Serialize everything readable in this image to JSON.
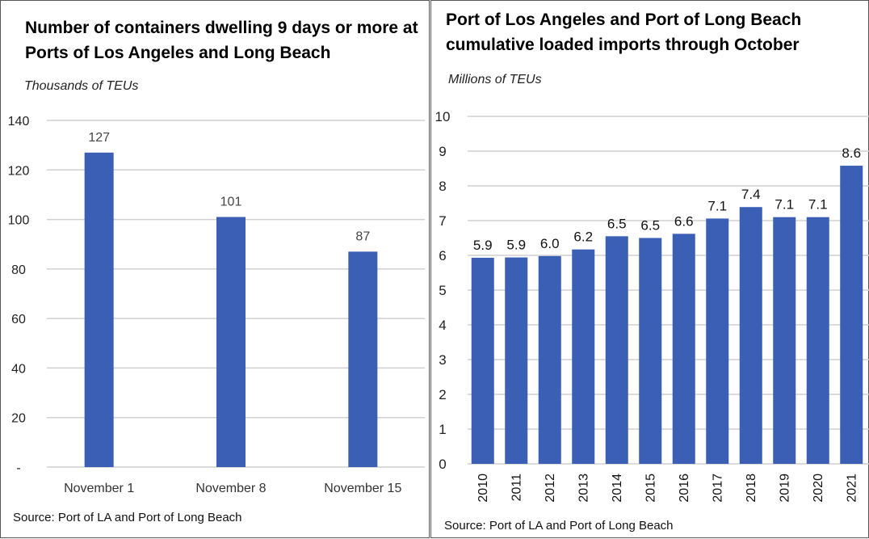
{
  "chart_data": [
    {
      "type": "bar",
      "title": "Number of containers dwelling 9 days or more at Ports of Los Angeles and Long Beach",
      "ylabel": "Thousands of TEUs",
      "xlabel": "",
      "categories": [
        "November 1",
        "November 8",
        "November 15"
      ],
      "values": [
        127,
        101,
        87
      ],
      "data_labels": [
        "127",
        "101",
        "87"
      ],
      "ylim": [
        0,
        140
      ],
      "yticks": [
        0,
        20,
        40,
        60,
        80,
        100,
        120,
        140
      ],
      "ytick_labels": [
        "-",
        "20",
        "40",
        "60",
        "80",
        "100",
        "120",
        "140"
      ],
      "grid": true,
      "color": "#3a5fb5",
      "source": "Source: Port of LA and Port of Long Beach"
    },
    {
      "type": "bar",
      "title": "Port of Los Angeles and Port of Long Beach cumulative loaded imports through October",
      "ylabel": "Millions of TEUs",
      "xlabel": "",
      "categories": [
        "2010",
        "2011",
        "2012",
        "2013",
        "2014",
        "2015",
        "2016",
        "2017",
        "2018",
        "2019",
        "2020",
        "2021"
      ],
      "values": [
        5.93,
        5.94,
        5.98,
        6.17,
        6.55,
        6.5,
        6.62,
        7.06,
        7.39,
        7.1,
        7.1,
        8.58
      ],
      "data_labels": [
        "5.9",
        "5.9",
        "6.0",
        "6.2",
        "6.5",
        "6.5",
        "6.6",
        "7.1",
        "7.4",
        "7.1",
        "7.1",
        "8.6"
      ],
      "ylim": [
        0,
        10
      ],
      "yticks": [
        0,
        1,
        2,
        3,
        4,
        5,
        6,
        7,
        8,
        9,
        10
      ],
      "ytick_labels": [
        "0",
        "1",
        "2",
        "3",
        "4",
        "5",
        "6",
        "7",
        "8",
        "9",
        "10"
      ],
      "grid": true,
      "color": "#3a5fb5",
      "source": "Source: Port of LA and Port of Long Beach"
    }
  ]
}
